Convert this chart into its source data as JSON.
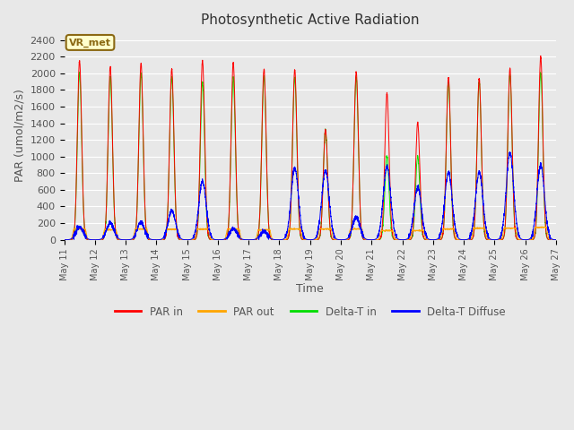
{
  "title": "Photosynthetic Active Radiation",
  "xlabel": "Time",
  "ylabel": "PAR (umol/m2/s)",
  "ylim": [
    0,
    2500
  ],
  "yticks": [
    0,
    200,
    400,
    600,
    800,
    1000,
    1200,
    1400,
    1600,
    1800,
    2000,
    2200,
    2400
  ],
  "background_color": "#e8e8e8",
  "plot_bg_color": "#e8e8e8",
  "grid_color": "#d0d0d0",
  "annotation_text": "VR_met",
  "annotation_bg": "#ffffcc",
  "annotation_border": "#8B6914",
  "legend_labels": [
    "PAR in",
    "PAR out",
    "Delta-T in",
    "Delta-T Diffuse"
  ],
  "legend_colors": [
    "#ff0000",
    "#ffa500",
    "#00dd00",
    "#0000ff"
  ],
  "line_colors": {
    "par_in": "#ff0000",
    "par_out": "#ffa500",
    "delta_t_in": "#00ee00",
    "delta_t_diffuse": "#0000ff"
  },
  "n_days": 16,
  "start_day": 11,
  "end_day": 26,
  "par_in_peaks": [
    2150,
    2080,
    2120,
    2050,
    2150,
    2130,
    2050,
    2040,
    1330,
    2010,
    1760,
    1400,
    1950,
    1940,
    2060,
    2200
  ],
  "par_out_peaks": [
    130,
    120,
    130,
    125,
    130,
    130,
    120,
    130,
    130,
    130,
    110,
    110,
    130,
    140,
    140,
    150
  ],
  "delta_t_in_peaks": [
    2000,
    1960,
    2000,
    1950,
    1900,
    1950,
    1960,
    1950,
    1320,
    1950,
    1000,
    1000,
    1900,
    1900,
    1980,
    2000
  ],
  "delta_t_diff_peaks": [
    150,
    200,
    210,
    350,
    700,
    130,
    100,
    860,
    830,
    270,
    880,
    630,
    810,
    810,
    1040,
    900
  ]
}
